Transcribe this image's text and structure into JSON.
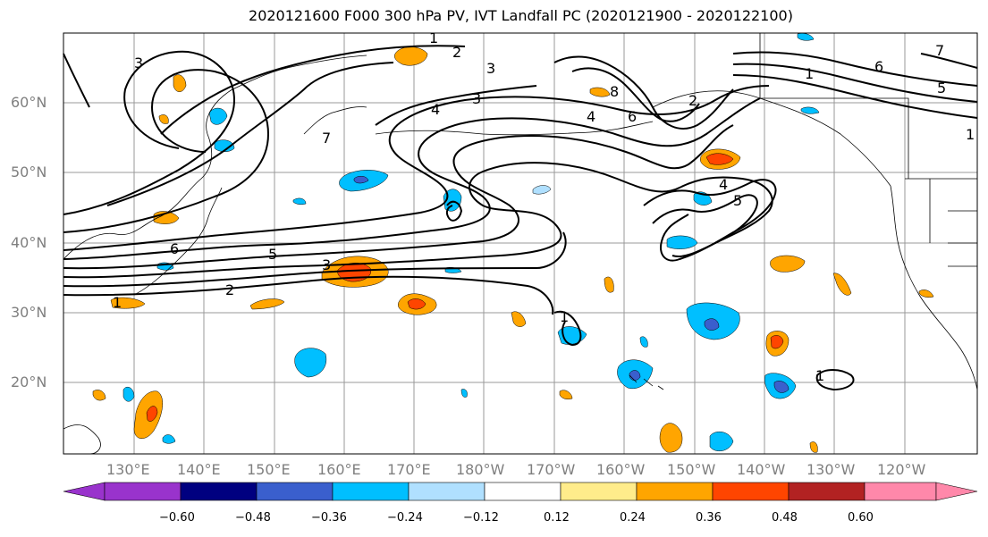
{
  "title": "2020121600 F000 300 hPa PV, IVT Landfall PC (2020121900 - 2020122100)",
  "lat_labels": [
    "60°N",
    "50°N",
    "40°N",
    "30°N",
    "20°N"
  ],
  "lon_labels": [
    "130°E",
    "140°E",
    "150°E",
    "160°E",
    "170°E",
    "180°W",
    "170°W",
    "160°W",
    "150°W",
    "140°W",
    "130°W",
    "120°W"
  ],
  "colorbar": {
    "tick_labels": [
      "−0.60",
      "−0.48",
      "−0.36",
      "−0.24",
      "−0.12",
      "0.12",
      "0.24",
      "0.36",
      "0.48",
      "0.60"
    ],
    "colors": [
      "#9933cc",
      "#000080",
      "#3a5fcd",
      "#00bfff",
      "#b0e0ff",
      "#ffffff",
      "#ffec8b",
      "#ffa500",
      "#ff4500",
      "#b22222",
      "#ff88aa"
    ]
  },
  "contour_labels": [
    "1",
    "2",
    "3",
    "4",
    "5",
    "6",
    "7",
    "8",
    "1",
    "2",
    "3",
    "4",
    "5",
    "6",
    "7",
    "3",
    "1",
    "2",
    "3",
    "4",
    "6",
    "5",
    "1",
    "7",
    "1",
    "1"
  ]
}
